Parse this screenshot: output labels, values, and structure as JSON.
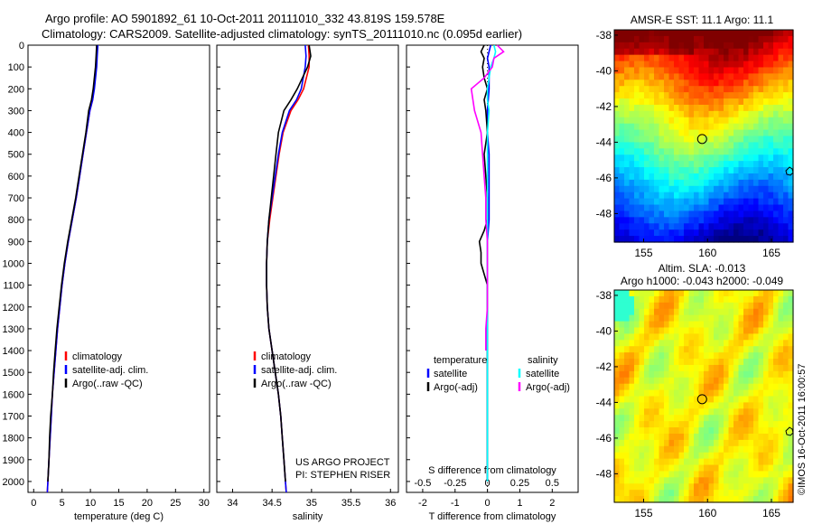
{
  "header": {
    "line1": "Argo profile: AO 5901892_61 10-Oct-2011 20111010_332 43.819S 159.578E",
    "line2": "Climatology: CARS2009. Satellite-adjusted climatology: synTS_20111010.nc (0.095d earlier)"
  },
  "watermark": "©IMOS 16-Oct-2011 16:00:57",
  "colors": {
    "climatology": "#ff0000",
    "satellite": "#0000ff",
    "argo": "#000000",
    "satellite_salinity": "#00ffff",
    "argo_salinity": "#ff00ff"
  },
  "chart_data": [
    {
      "type": "line",
      "id": "temperature",
      "xlabel": "temperature (deg C)",
      "xlim": [
        -1,
        31
      ],
      "xticks": [
        0,
        5,
        10,
        15,
        20,
        25,
        30
      ],
      "ylim": [
        2050,
        0
      ],
      "yticks": [
        0,
        100,
        200,
        300,
        400,
        500,
        600,
        700,
        800,
        900,
        1000,
        1100,
        1200,
        1300,
        1400,
        1500,
        1600,
        1700,
        1800,
        1900,
        2000
      ],
      "legend": [
        "climatology",
        "satellite-adj. clim.",
        "Argo(..raw -QC)"
      ],
      "series": [
        {
          "name": "climatology",
          "color": "#ff0000",
          "depth": [
            0,
            50,
            100,
            200,
            250,
            300,
            400,
            500,
            600,
            700,
            800,
            900,
            1000,
            1100,
            1200,
            1300,
            1400,
            1500,
            1600,
            1700,
            1800,
            1900,
            2000,
            2050
          ],
          "values": [
            11.2,
            11.1,
            11.0,
            10.6,
            10.4,
            9.9,
            9.3,
            8.7,
            8.1,
            7.5,
            6.8,
            6.1,
            5.5,
            5.0,
            4.6,
            4.2,
            3.9,
            3.6,
            3.3,
            3.1,
            2.9,
            2.7,
            2.5,
            2.4
          ]
        },
        {
          "name": "satellite-adj. clim.",
          "color": "#0000ff",
          "depth": [
            0,
            50,
            100,
            200,
            250,
            300,
            400,
            500,
            600,
            700,
            800,
            900,
            1000,
            1100,
            1200,
            1300,
            1400,
            1500,
            1600,
            1700,
            1800,
            1900,
            2000,
            2050
          ],
          "values": [
            11.3,
            11.2,
            11.1,
            10.7,
            10.4,
            9.9,
            9.3,
            8.7,
            8.1,
            7.5,
            6.8,
            6.1,
            5.5,
            5.0,
            4.6,
            4.2,
            3.9,
            3.6,
            3.3,
            3.1,
            2.9,
            2.7,
            2.5,
            2.4
          ]
        },
        {
          "name": "Argo(..raw -QC)",
          "color": "#000000",
          "depth": [
            0,
            50,
            100,
            200,
            250,
            300,
            400,
            500,
            600,
            700,
            800,
            900,
            1000,
            1100,
            1200,
            1300,
            1400,
            1500,
            1600,
            1700,
            1800,
            1900,
            2000
          ],
          "values": [
            11.1,
            11.0,
            10.9,
            10.5,
            10.2,
            9.7,
            9.2,
            8.6,
            8.0,
            7.4,
            6.7,
            6.0,
            5.4,
            4.9,
            4.5,
            4.1,
            3.8,
            3.5,
            3.3,
            3.0,
            2.8,
            2.7,
            2.5
          ]
        }
      ]
    },
    {
      "type": "line",
      "id": "salinity",
      "xlabel": "salinity",
      "xlim": [
        33.8,
        36.1
      ],
      "xticks": [
        34,
        34.5,
        35,
        35.5,
        36
      ],
      "ylim": [
        2050,
        0
      ],
      "legend": [
        "climatology",
        "satellite-adj. clim.",
        "Argo(..raw -QC)"
      ],
      "annotation": [
        "US ARGO PROJECT",
        "PI: STEPHEN RISER"
      ],
      "series": [
        {
          "name": "climatology",
          "color": "#ff0000",
          "depth": [
            0,
            50,
            100,
            200,
            250,
            300,
            400,
            500,
            600,
            700,
            800,
            900,
            1000,
            1100,
            1200,
            1300,
            1400,
            1500,
            1600,
            1700,
            1800,
            1900,
            2000,
            2050
          ],
          "values": [
            34.96,
            34.97,
            34.97,
            34.9,
            34.83,
            34.74,
            34.64,
            34.59,
            34.55,
            34.51,
            34.47,
            34.44,
            34.43,
            34.43,
            34.44,
            34.46,
            34.5,
            34.54,
            34.58,
            34.61,
            34.63,
            34.65,
            34.67,
            34.68
          ]
        },
        {
          "name": "satellite-adj. clim.",
          "color": "#0000ff",
          "depth": [
            0,
            50,
            100,
            200,
            250,
            300,
            400,
            500,
            600,
            700,
            800,
            900,
            1000,
            1100,
            1200,
            1300,
            1400,
            1500,
            1600,
            1700,
            1800,
            1900,
            2000,
            2050
          ],
          "values": [
            34.92,
            34.93,
            34.92,
            34.87,
            34.81,
            34.72,
            34.63,
            34.58,
            34.54,
            34.5,
            34.46,
            34.44,
            34.43,
            34.43,
            34.44,
            34.46,
            34.5,
            34.54,
            34.58,
            34.61,
            34.63,
            34.65,
            34.67,
            34.68
          ]
        },
        {
          "name": "Argo(..raw -QC)",
          "color": "#000000",
          "depth": [
            0,
            50,
            100,
            200,
            250,
            300,
            400,
            500,
            600,
            700,
            800,
            900,
            1000,
            1100,
            1200,
            1300,
            1400,
            1500,
            1600,
            1700,
            1800,
            1900,
            2000
          ],
          "values": [
            34.97,
            34.99,
            34.95,
            34.82,
            34.74,
            34.65,
            34.58,
            34.55,
            34.52,
            34.49,
            34.46,
            34.44,
            34.43,
            34.43,
            34.44,
            34.46,
            34.5,
            34.54,
            34.58,
            34.61,
            34.63,
            34.65,
            34.67
          ]
        }
      ]
    },
    {
      "type": "line",
      "id": "difference",
      "xlabel": "T difference from climatology",
      "xlabel_top": "S difference from climatology",
      "xlim": [
        -2.5,
        2.8
      ],
      "xticks": [
        -2,
        -1,
        0,
        1,
        2
      ],
      "sticks_labels": [
        "-0.5",
        "-0.25",
        "0",
        "0.25",
        "0.5"
      ],
      "sticks_positions_t": [
        -2,
        -1,
        0,
        1,
        2
      ],
      "ylim": [
        2050,
        0
      ],
      "legend_left_title": "temperature",
      "legend_left": [
        "satellite",
        "Argo(-adj)"
      ],
      "legend_right_title": "salinity",
      "legend_right": [
        "satellite",
        "Argo(-adj)"
      ],
      "series": [
        {
          "name": "T satellite",
          "color": "#0000ff",
          "depth": [
            0,
            30,
            60,
            100,
            200,
            300,
            400,
            500,
            600,
            700,
            800,
            900,
            1000,
            1200,
            1500,
            2000
          ],
          "values": [
            0.1,
            0.05,
            0.0,
            0.05,
            0.05,
            0.0,
            0.0,
            0.05,
            0.05,
            0.05,
            0.05,
            0.0,
            0.0,
            0.0,
            0.0,
            0.0
          ]
        },
        {
          "name": "T Argo(-adj)",
          "color": "#000000",
          "depth": [
            0,
            30,
            60,
            100,
            150,
            200,
            250,
            300,
            400,
            500,
            600,
            700,
            800,
            850,
            900,
            950,
            1000,
            1050,
            1100,
            1200,
            1400,
            1600,
            1800,
            2000
          ],
          "values": [
            -0.1,
            -0.2,
            -0.1,
            -0.15,
            -0.1,
            0.0,
            -0.1,
            -0.05,
            0.0,
            -0.1,
            -0.05,
            0.0,
            0.0,
            -0.1,
            -0.25,
            -0.2,
            -0.2,
            -0.1,
            0.0,
            0.0,
            0.0,
            0.0,
            0.0,
            0.0
          ]
        },
        {
          "name": "S satellite",
          "color": "#00ffff",
          "depth": [
            0,
            30,
            60,
            100,
            150,
            200,
            250,
            300,
            400,
            500,
            600,
            700,
            800,
            900,
            1000,
            1100,
            1200,
            1400,
            1600,
            1800,
            2000
          ],
          "values": [
            0.2,
            0.25,
            0.2,
            0.1,
            0.05,
            0.0,
            0.0,
            0.05,
            0.0,
            0.0,
            0.0,
            0.0,
            0.0,
            0.0,
            0.0,
            0.0,
            0.0,
            0.0,
            0.0,
            0.0,
            0.0
          ]
        },
        {
          "name": "S Argo(-adj)",
          "color": "#ff00ff",
          "depth": [
            0,
            30,
            60,
            100,
            150,
            200,
            250,
            300,
            350,
            400,
            500,
            600,
            700,
            800,
            900,
            1000,
            1100,
            1200,
            1300,
            1400
          ],
          "values": [
            0.3,
            0.5,
            0.2,
            0.15,
            -0.1,
            -0.5,
            -0.45,
            -0.4,
            -0.3,
            -0.2,
            -0.15,
            -0.1,
            -0.05,
            -0.05,
            0.0,
            0.0,
            0.0,
            0.0,
            -0.05,
            -0.05
          ]
        }
      ]
    },
    {
      "type": "heatmap",
      "id": "sst_map",
      "title": "AMSR-E SST: 11.1  Argo: 11.1",
      "xlim": [
        152.7,
        166.7
      ],
      "ylim": [
        -49.6,
        -37.7
      ],
      "xticks": [
        155,
        160,
        165
      ],
      "yticks": [
        -38,
        -40,
        -42,
        -44,
        -46,
        -48
      ],
      "marker": {
        "lon": 159.578,
        "lat": -43.819
      },
      "value_range": [
        7,
        18
      ]
    },
    {
      "type": "heatmap",
      "id": "sla_map",
      "title": "Altim. SLA: -0.013",
      "subtitle": "Argo h1000: -0.043  h2000: -0.049",
      "xlim": [
        152.7,
        166.7
      ],
      "ylim": [
        -49.6,
        -37.7
      ],
      "xticks": [
        155,
        160,
        165
      ],
      "yticks": [
        -38,
        -40,
        -42,
        -44,
        -46,
        -48
      ],
      "marker": {
        "lon": 159.578,
        "lat": -43.819
      }
    }
  ]
}
